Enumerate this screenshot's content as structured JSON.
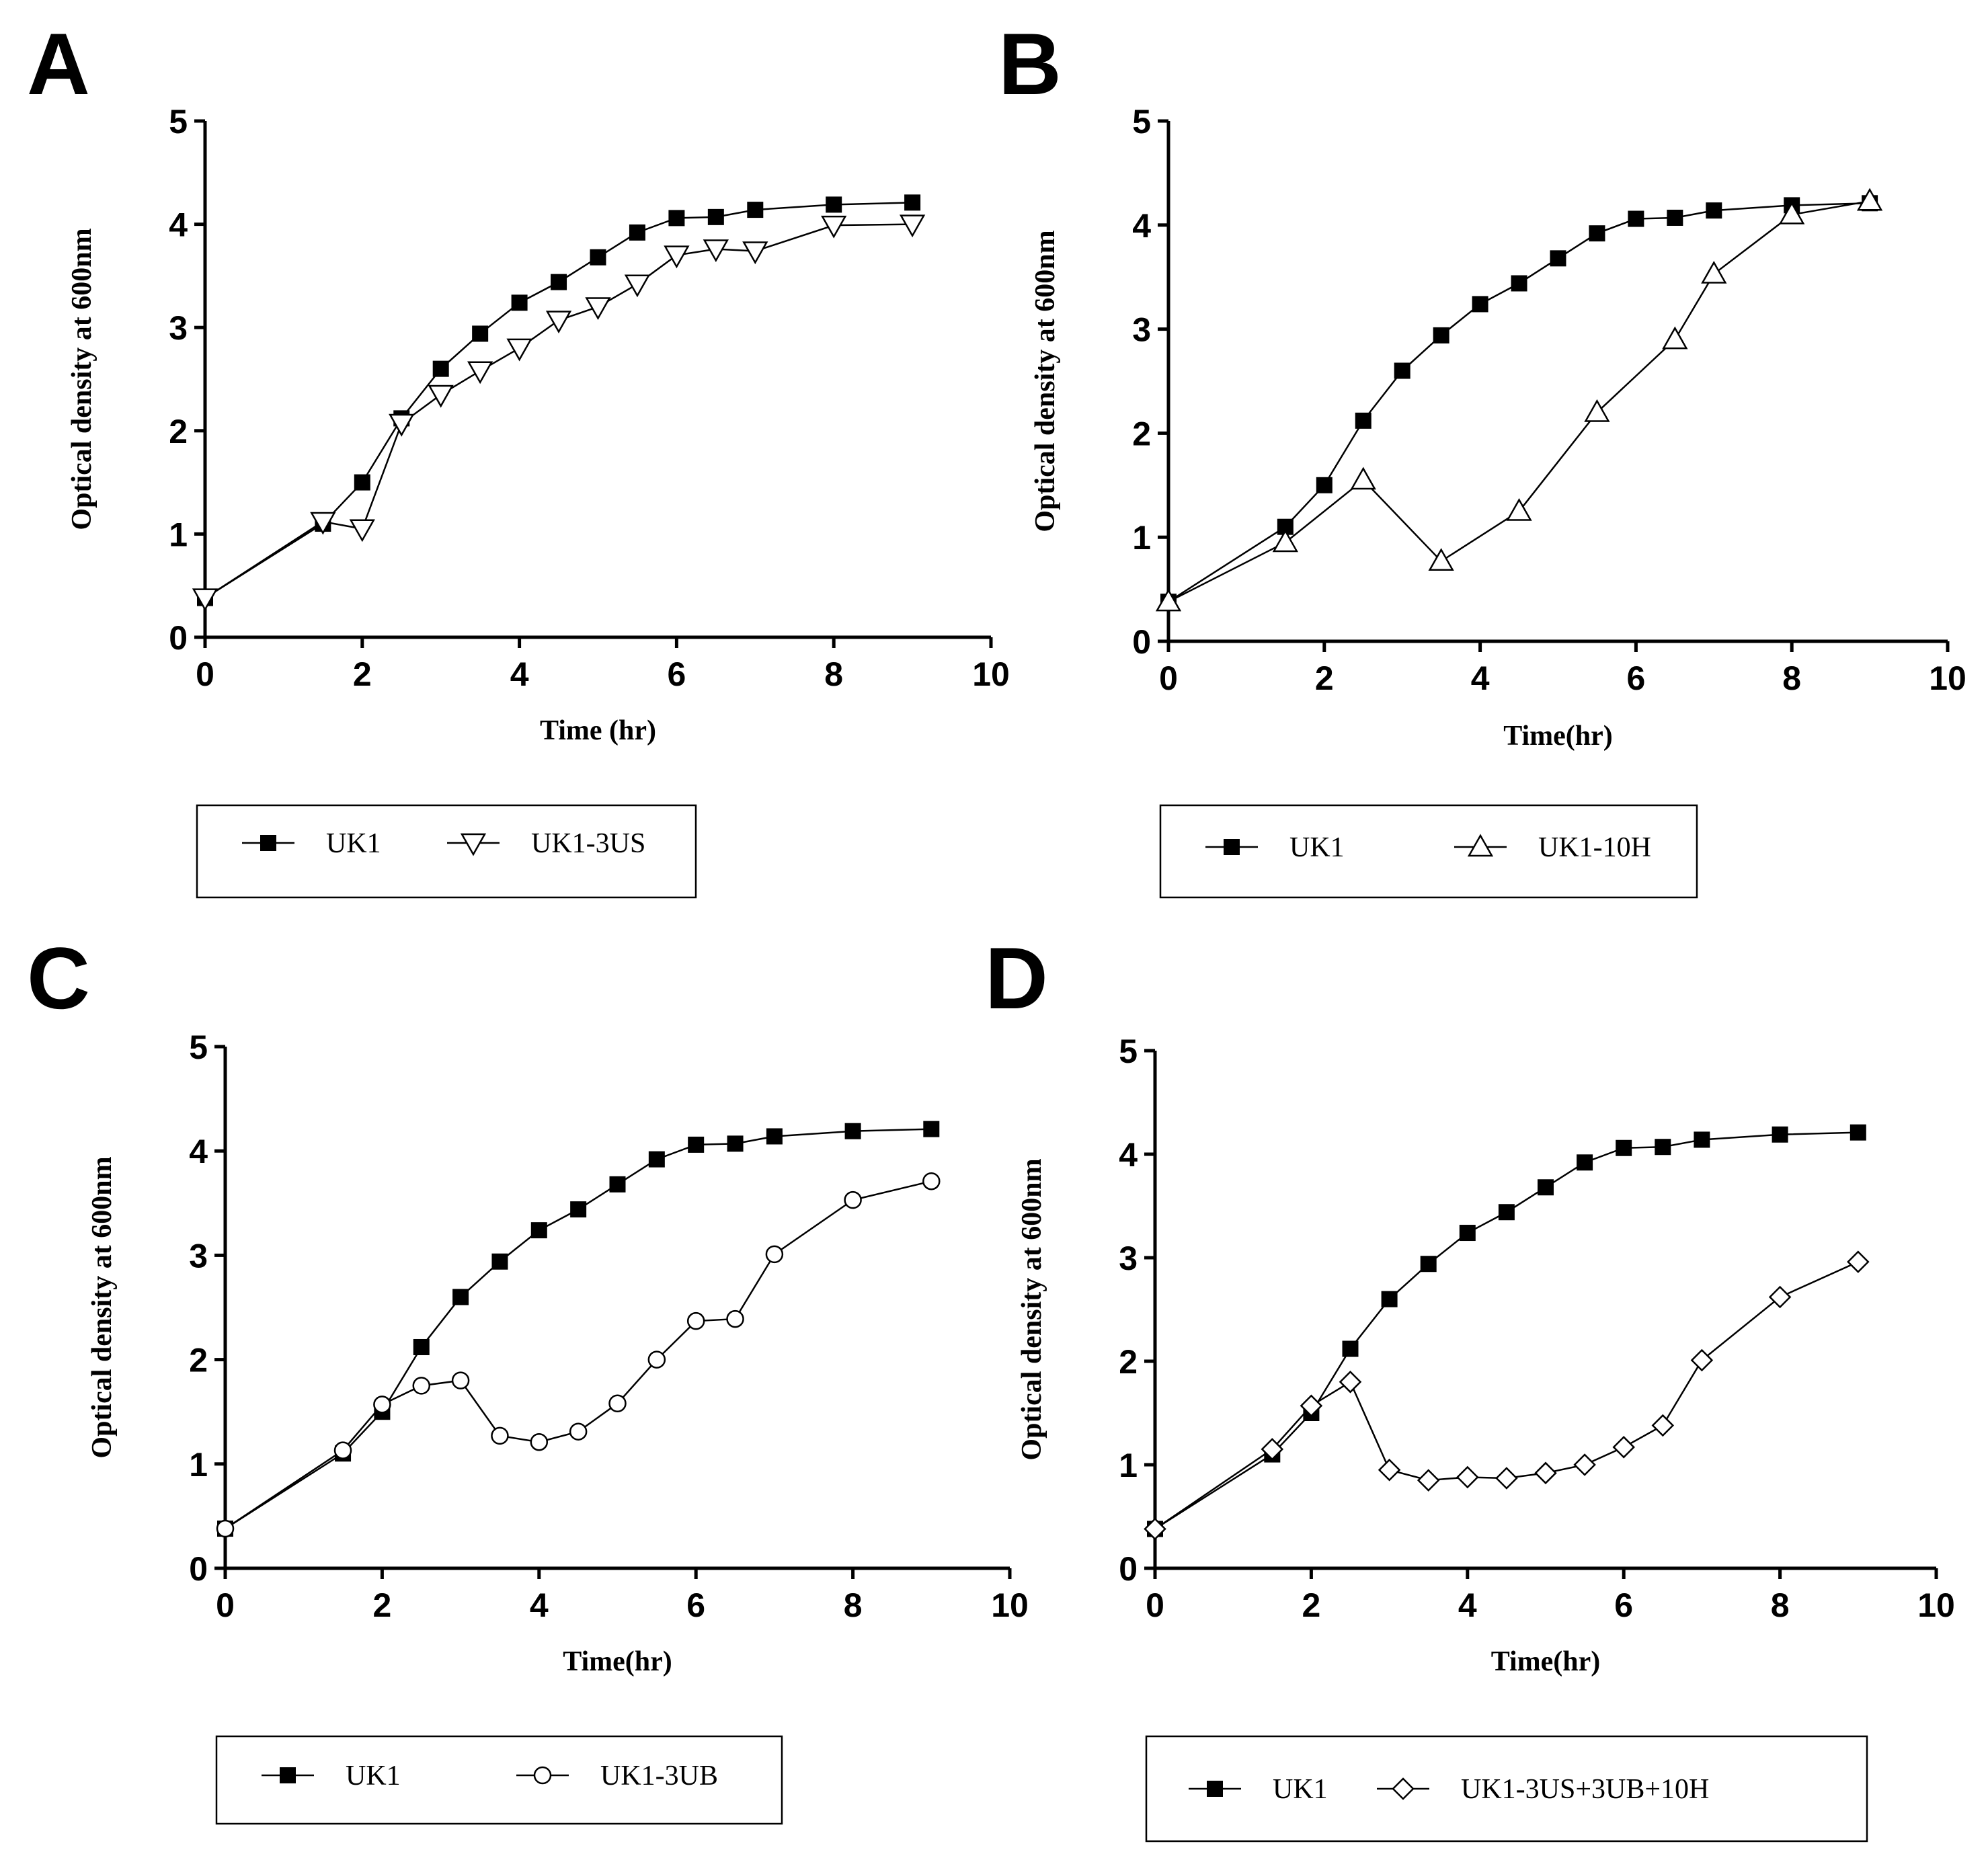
{
  "chart_data": [
    {
      "type": "line",
      "panel": "A",
      "xlabel": "Time (hr)",
      "ylabel": "Optical density at 600nm",
      "xlim": [
        0,
        10
      ],
      "ylim": [
        0,
        5
      ],
      "xticks": [
        "0",
        "2",
        "4",
        "6",
        "8",
        "10"
      ],
      "yticks": [
        "0",
        "1",
        "2",
        "3",
        "4",
        "5"
      ],
      "legend_position": "below",
      "series": [
        {
          "name": "UK1",
          "marker": "filled-square",
          "x": [
            0,
            1.5,
            2,
            2.5,
            3,
            3.5,
            4,
            4.5,
            5,
            5.5,
            6,
            6.5,
            7,
            8,
            9
          ],
          "y": [
            0.38,
            1.1,
            1.5,
            2.12,
            2.6,
            2.94,
            3.24,
            3.44,
            3.68,
            3.92,
            4.06,
            4.07,
            4.14,
            4.19,
            4.21
          ]
        },
        {
          "name": "UK1-3US",
          "marker": "open-triangle-down",
          "x": [
            0,
            1.5,
            2,
            2.5,
            3,
            3.5,
            4,
            4.5,
            5,
            5.5,
            6,
            6.5,
            7,
            8,
            9
          ],
          "y": [
            0.38,
            1.12,
            1.05,
            2.07,
            2.35,
            2.58,
            2.8,
            3.07,
            3.2,
            3.42,
            3.7,
            3.76,
            3.74,
            3.99,
            4.0
          ]
        }
      ]
    },
    {
      "type": "line",
      "panel": "B",
      "xlabel": "Time(hr)",
      "ylabel": "Optical density at 600nm",
      "xlim": [
        0,
        10
      ],
      "ylim": [
        0,
        5
      ],
      "xticks": [
        "0",
        "2",
        "4",
        "6",
        "8",
        "10"
      ],
      "yticks": [
        "0",
        "1",
        "2",
        "3",
        "4",
        "5"
      ],
      "legend_position": "below",
      "series": [
        {
          "name": "UK1",
          "marker": "filled-square",
          "x": [
            0,
            1.5,
            2,
            2.5,
            3,
            3.5,
            4,
            4.5,
            5,
            5.5,
            6,
            6.5,
            7,
            8,
            9
          ],
          "y": [
            0.38,
            1.1,
            1.5,
            2.12,
            2.6,
            2.94,
            3.24,
            3.44,
            3.68,
            3.92,
            4.06,
            4.07,
            4.14,
            4.19,
            4.21
          ]
        },
        {
          "name": "UK1-10H",
          "marker": "open-triangle-up",
          "x": [
            0,
            1.5,
            2.5,
            3.5,
            4.5,
            5.5,
            6.5,
            7,
            8,
            9
          ],
          "y": [
            0.38,
            0.95,
            1.55,
            0.77,
            1.25,
            2.2,
            2.9,
            3.53,
            4.1,
            4.23
          ]
        }
      ]
    },
    {
      "type": "line",
      "panel": "C",
      "xlabel": "Time(hr)",
      "ylabel": "Optical density at 600nm",
      "xlim": [
        0,
        10
      ],
      "ylim": [
        0,
        5
      ],
      "xticks": [
        "0",
        "2",
        "4",
        "6",
        "8",
        "10"
      ],
      "yticks": [
        "0",
        "1",
        "2",
        "3",
        "4",
        "5"
      ],
      "legend_position": "below",
      "series": [
        {
          "name": "UK1",
          "marker": "filled-square",
          "x": [
            0,
            1.5,
            2,
            2.5,
            3,
            3.5,
            4,
            4.5,
            5,
            5.5,
            6,
            6.5,
            7,
            8,
            9
          ],
          "y": [
            0.38,
            1.1,
            1.5,
            2.12,
            2.6,
            2.94,
            3.24,
            3.44,
            3.68,
            3.92,
            4.06,
            4.07,
            4.14,
            4.19,
            4.21
          ]
        },
        {
          "name": "UK1-3UB",
          "marker": "open-circle",
          "x": [
            0,
            1.5,
            2,
            2.5,
            3,
            3.5,
            4,
            4.5,
            5,
            5.5,
            6,
            6.5,
            7,
            8,
            9
          ],
          "y": [
            0.38,
            1.13,
            1.57,
            1.75,
            1.8,
            1.27,
            1.21,
            1.31,
            1.58,
            2.0,
            2.37,
            2.39,
            3.01,
            3.53,
            3.71
          ]
        }
      ]
    },
    {
      "type": "line",
      "panel": "D",
      "xlabel": "Time(hr)",
      "ylabel": "Optical density at 600nm",
      "xlim": [
        0,
        10
      ],
      "ylim": [
        0,
        5
      ],
      "xticks": [
        "0",
        "2",
        "4",
        "6",
        "8",
        "10"
      ],
      "yticks": [
        "0",
        "1",
        "2",
        "3",
        "4",
        "5"
      ],
      "legend_position": "below",
      "series": [
        {
          "name": "UK1",
          "marker": "filled-square",
          "x": [
            0,
            1.5,
            2,
            2.5,
            3,
            3.5,
            4,
            4.5,
            5,
            5.5,
            6,
            6.5,
            7,
            8,
            9
          ],
          "y": [
            0.38,
            1.1,
            1.5,
            2.12,
            2.6,
            2.94,
            3.24,
            3.44,
            3.68,
            3.92,
            4.06,
            4.07,
            4.14,
            4.19,
            4.21
          ]
        },
        {
          "name": "UK1-3US+3UB+10H",
          "marker": "open-diamond",
          "x": [
            0,
            1.5,
            2,
            2.5,
            3,
            3.5,
            4,
            4.5,
            5,
            5.5,
            6,
            6.5,
            7,
            8,
            9
          ],
          "y": [
            0.38,
            1.15,
            1.57,
            1.8,
            0.95,
            0.85,
            0.88,
            0.87,
            0.92,
            1.0,
            1.17,
            1.38,
            2.01,
            2.62,
            2.96
          ]
        }
      ]
    }
  ]
}
